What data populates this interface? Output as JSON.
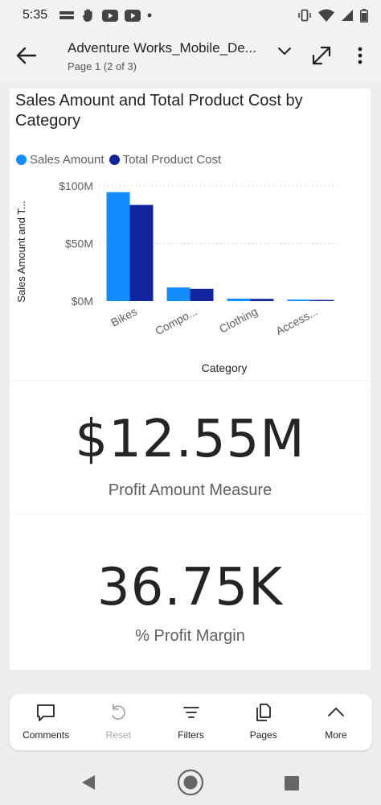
{
  "status_bar": {
    "time": "5:35"
  },
  "header": {
    "title": "Adventure Works_Mobile_De...",
    "subtitle": "Page 1 (2 of 3)"
  },
  "report": {
    "chart": {
      "title": "Sales Amount and Total Product Cost by Category"
    },
    "card_profit": {
      "value": "$12.55M",
      "label": "Profit Amount Measure"
    },
    "card_margin": {
      "value": "36.75K",
      "label": "% Profit Margin"
    }
  },
  "chart_data": {
    "type": "bar",
    "title": "Sales Amount and Total Product Cost by Category",
    "xlabel": "Category",
    "ylabel": "Sales Amount and T...",
    "categories": [
      "Bikes",
      "Compo...",
      "Clothing",
      "Access..."
    ],
    "series": [
      {
        "name": "Sales Amount",
        "color": "#118DFF",
        "values": [
          94.6,
          11.8,
          2.1,
          1.3
        ]
      },
      {
        "name": "Total Product Cost",
        "color": "#12239E",
        "values": [
          83.5,
          10.6,
          1.9,
          1.0
        ]
      }
    ],
    "y_ticks": [
      {
        "value": 0,
        "label": "$0M"
      },
      {
        "value": 50,
        "label": "$50M"
      },
      {
        "value": 100,
        "label": "$100M"
      }
    ],
    "ylim": [
      0,
      100
    ],
    "grid": true,
    "legend_position": "top-left"
  },
  "action_bar": {
    "comments": "Comments",
    "reset": "Reset",
    "filters": "Filters",
    "pages": "Pages",
    "more": "More"
  }
}
